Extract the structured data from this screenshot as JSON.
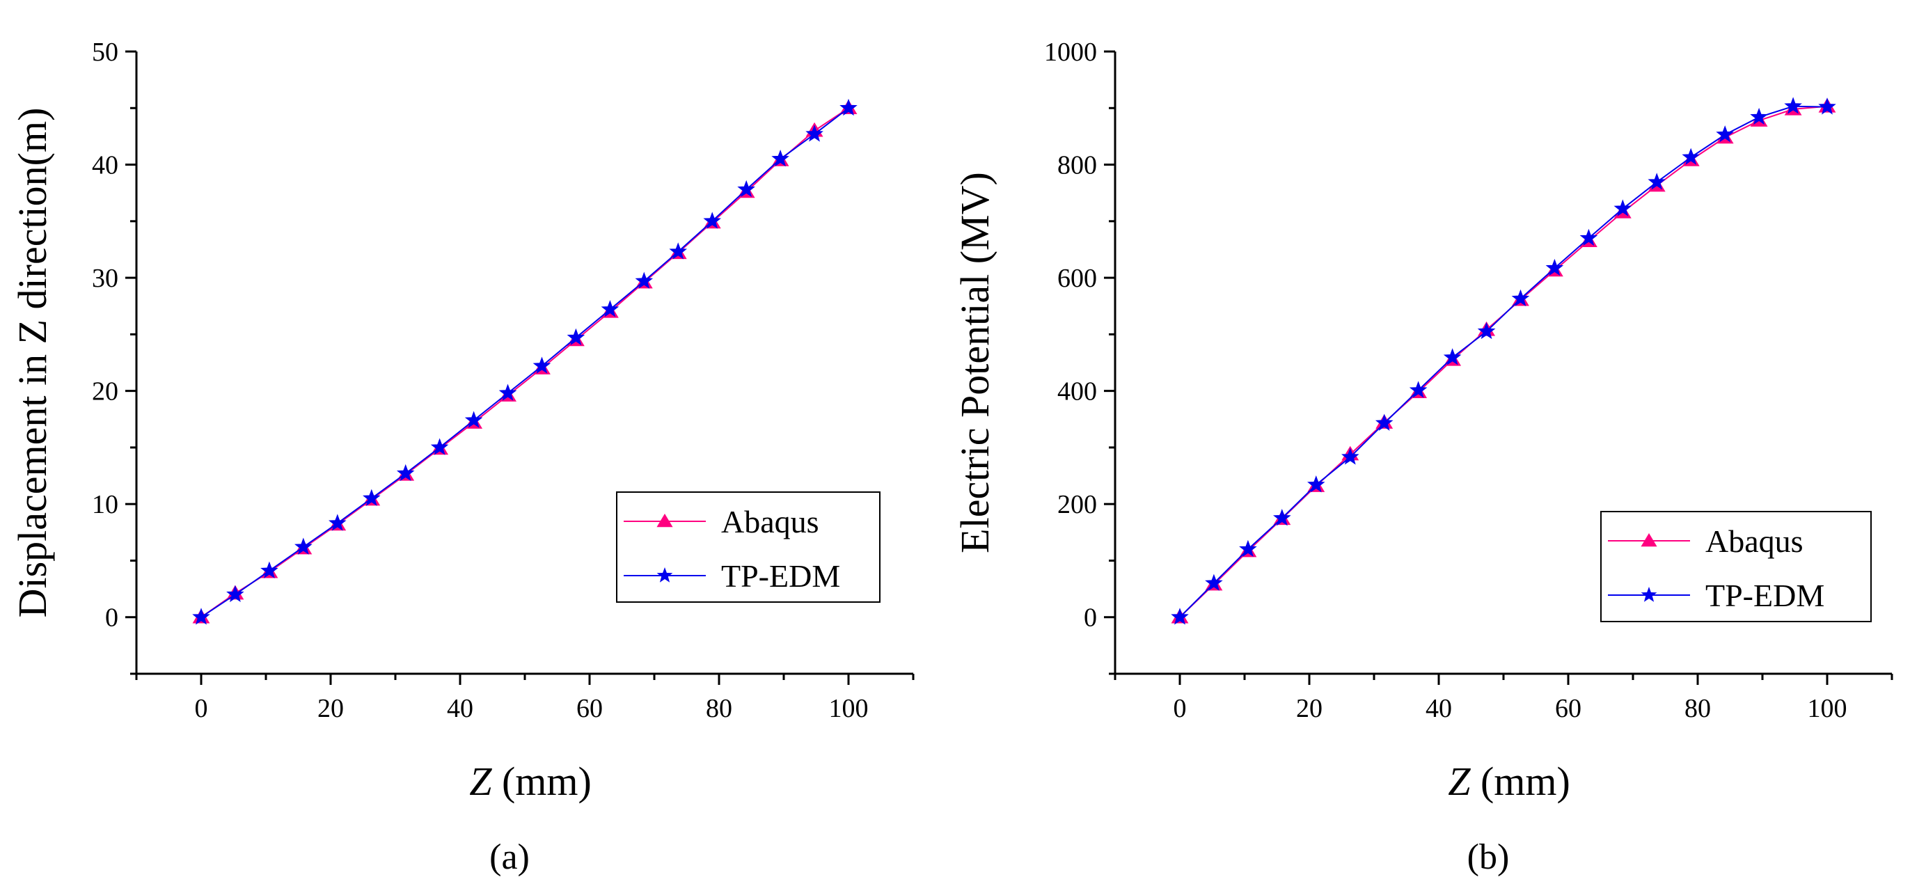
{
  "chart_data": [
    {
      "type": "line",
      "panel_label": "(a)",
      "xlabel_var": "Z",
      "xlabel_unit": " (mm)",
      "ylabel": "Displacement in Z direction(m)",
      "xlim": [
        -10,
        110
      ],
      "ylim": [
        -5,
        50
      ],
      "xticks": [
        0,
        20,
        40,
        60,
        80,
        100
      ],
      "yticks": [
        0,
        10,
        20,
        30,
        40,
        50
      ],
      "legend_position": "bottom-right",
      "x": [
        0,
        5.26,
        10.53,
        15.79,
        21.05,
        26.32,
        31.58,
        36.84,
        42.11,
        47.37,
        52.63,
        57.89,
        63.16,
        68.42,
        73.68,
        78.95,
        84.21,
        89.47,
        94.74,
        100
      ],
      "series": [
        {
          "name": "Abaqus",
          "marker": "triangle",
          "color": "#ff0080",
          "values": [
            0,
            2.1,
            4.0,
            6.1,
            8.2,
            10.4,
            12.6,
            14.9,
            17.2,
            19.6,
            22.0,
            24.5,
            27.0,
            29.6,
            32.2,
            34.9,
            37.6,
            40.4,
            43.0,
            45.0
          ]
        },
        {
          "name": "TP-EDM",
          "marker": "star",
          "color": "#0000ee",
          "values": [
            0,
            2.0,
            4.1,
            6.2,
            8.3,
            10.5,
            12.7,
            15.0,
            17.4,
            19.8,
            22.2,
            24.7,
            27.2,
            29.7,
            32.3,
            35.0,
            37.8,
            40.5,
            42.7,
            45.0
          ]
        }
      ]
    },
    {
      "type": "line",
      "panel_label": "(b)",
      "xlabel_var": "Z",
      "xlabel_unit": " (mm)",
      "ylabel": "Electric Potential (MV)",
      "xlim": [
        -10,
        110
      ],
      "ylim": [
        -100,
        1000
      ],
      "xticks": [
        0,
        20,
        40,
        60,
        80,
        100
      ],
      "yticks": [
        0,
        200,
        400,
        600,
        800,
        1000
      ],
      "legend_position": "bottom-right",
      "x": [
        0,
        5.26,
        10.53,
        15.79,
        21.05,
        26.32,
        31.58,
        36.84,
        42.11,
        47.37,
        52.63,
        57.89,
        63.16,
        68.42,
        73.68,
        78.95,
        84.21,
        89.47,
        94.74,
        100
      ],
      "series": [
        {
          "name": "Abaqus",
          "marker": "triangle",
          "color": "#ff0080",
          "values": [
            0,
            58,
            117,
            174,
            232,
            288,
            344,
            398,
            455,
            508,
            561,
            613,
            665,
            716,
            763,
            808,
            848,
            878,
            898,
            903
          ]
        },
        {
          "name": "TP-EDM",
          "marker": "star",
          "color": "#0000ee",
          "values": [
            0,
            60,
            120,
            175,
            234,
            283,
            343,
            401,
            459,
            505,
            563,
            617,
            670,
            722,
            769,
            813,
            853,
            884,
            903,
            902
          ]
        }
      ]
    }
  ]
}
